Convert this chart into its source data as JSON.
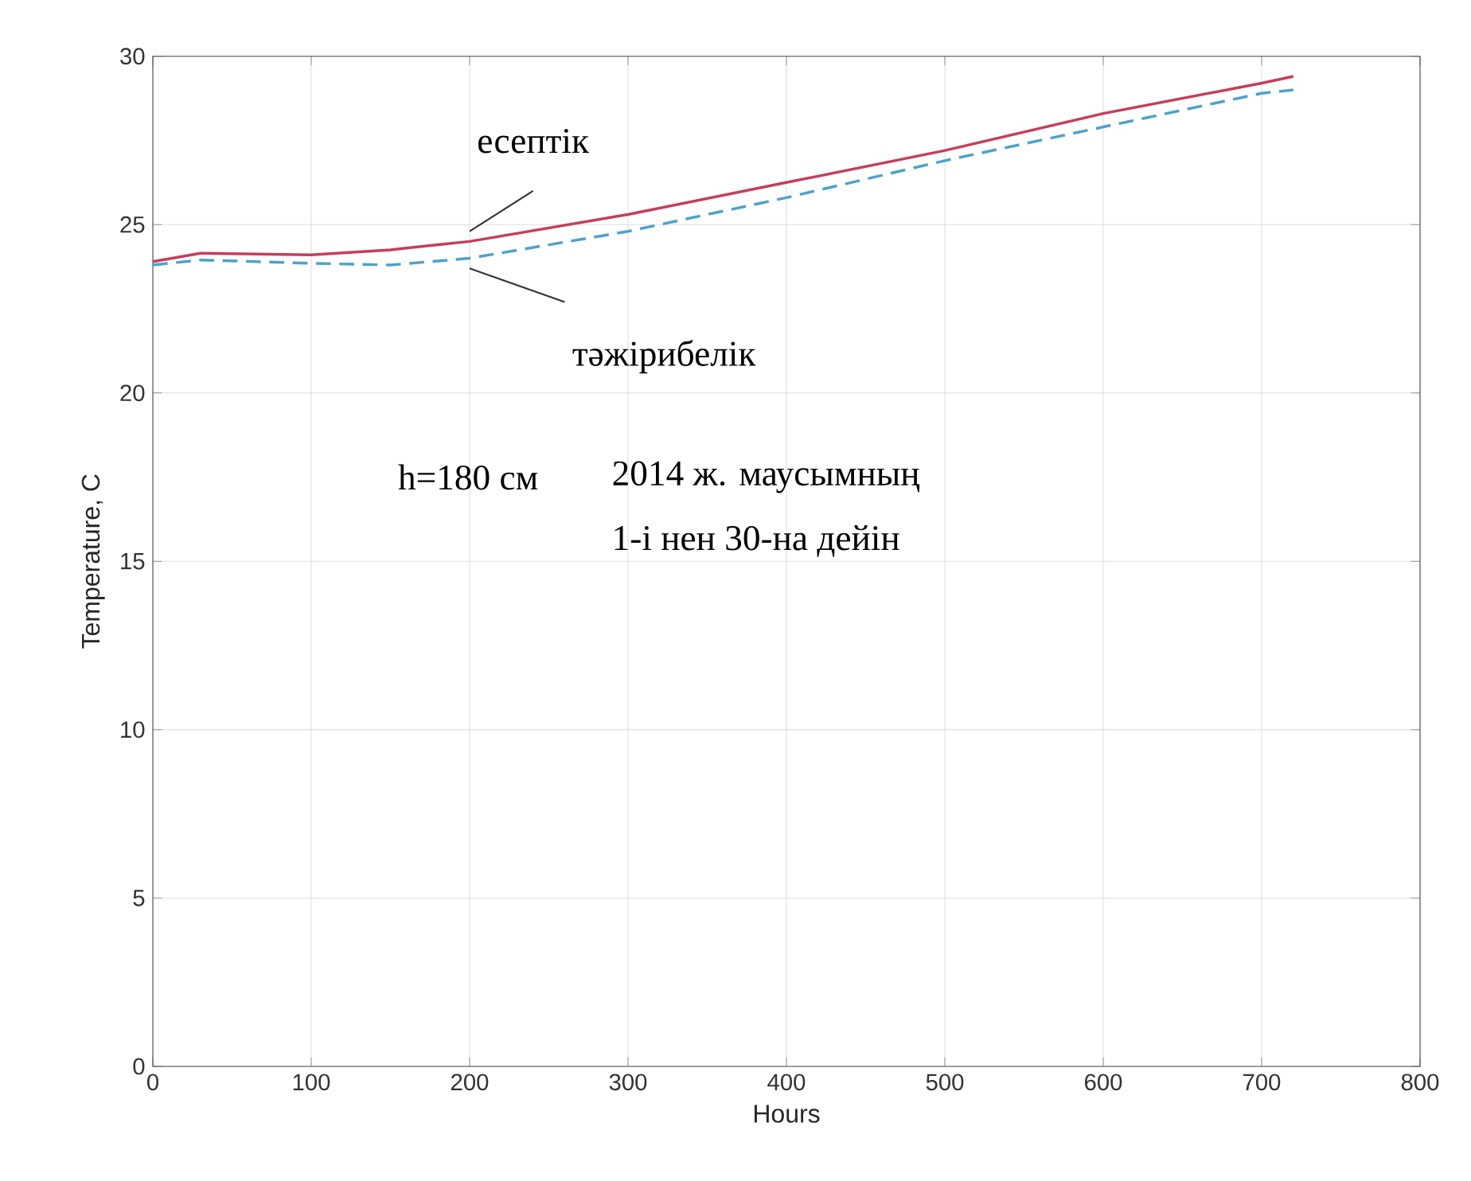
{
  "chart_data": {
    "type": "line",
    "xlabel": "Hours",
    "ylabel": "Temperature, C",
    "xlim": [
      0,
      800
    ],
    "ylim": [
      0,
      30
    ],
    "xticks": [
      0,
      100,
      200,
      300,
      400,
      500,
      600,
      700,
      800
    ],
    "yticks": [
      0,
      5,
      10,
      15,
      20,
      25,
      30
    ],
    "grid": true,
    "annotations": [
      "h=180 см",
      "2014 ж. маусымның",
      "1-і нен 30-на дейін"
    ],
    "series": [
      {
        "name": "есептік",
        "color": "#c83c5c",
        "line_style": "solid",
        "x": [
          0,
          30,
          100,
          150,
          180,
          200,
          300,
          400,
          500,
          600,
          700,
          720
        ],
        "values": [
          23.9,
          24.15,
          24.1,
          24.25,
          24.4,
          24.5,
          25.3,
          26.25,
          27.2,
          28.3,
          29.2,
          29.4
        ]
      },
      {
        "name": "тәжірибелік",
        "color": "#4aa3cc",
        "line_style": "dashed",
        "x": [
          0,
          30,
          100,
          150,
          200,
          250,
          300,
          400,
          500,
          600,
          700,
          720
        ],
        "values": [
          23.8,
          23.95,
          23.85,
          23.8,
          24.0,
          24.4,
          24.8,
          25.8,
          26.9,
          27.9,
          28.9,
          29.0
        ]
      }
    ]
  }
}
